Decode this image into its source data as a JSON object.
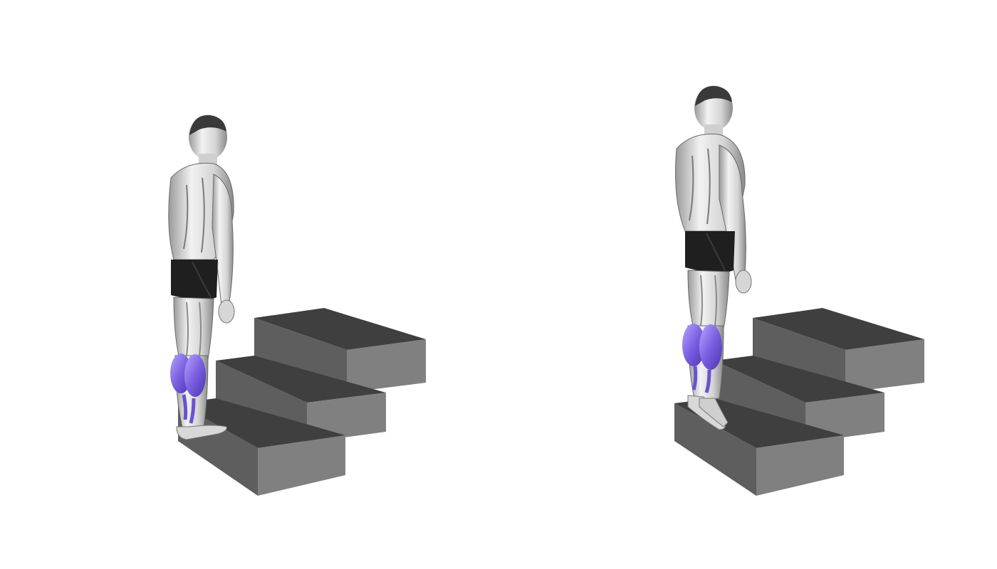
{
  "illustration": {
    "panels": [
      {
        "phase": "start-position",
        "heels": "lowered"
      },
      {
        "phase": "end-position",
        "heels": "raised"
      }
    ],
    "colors": {
      "background": "#ffffff",
      "step_top": "#3e3e3e",
      "step_front": "#5e5e5e",
      "step_side": "#7f7f7f",
      "skin_light": "#ececec",
      "skin_mid": "#bdbdbd",
      "skin_dark": "#7a7a7a",
      "shorts": "#1f1f1f",
      "target_muscle": "#7a5fe0",
      "target_muscle_light": "#a895ff"
    },
    "highlighted_muscle_icon": "calf-muscle-highlight"
  }
}
